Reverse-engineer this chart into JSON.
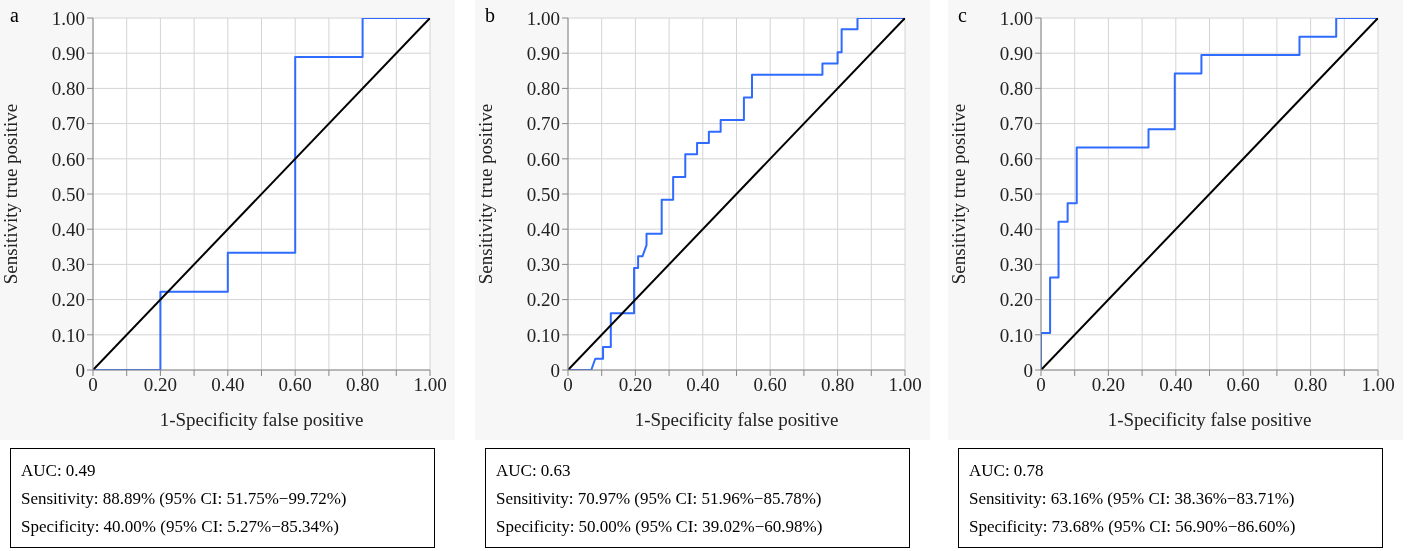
{
  "chart_data": [
    {
      "type": "line",
      "title": "a",
      "xlabel": "1-Specificity false positive",
      "ylabel": "Sensitivity true positive",
      "xlim": [
        0,
        1
      ],
      "ylim": [
        0,
        1
      ],
      "xticks": [
        {
          "value": 0,
          "label": "0"
        },
        {
          "value": 0.1,
          "label": null
        },
        {
          "value": 0.2,
          "label": "0.20"
        },
        {
          "value": 0.3,
          "label": null
        },
        {
          "value": 0.4,
          "label": "0.40"
        },
        {
          "value": 0.5,
          "label": null
        },
        {
          "value": 0.6,
          "label": "0.60"
        },
        {
          "value": 0.7,
          "label": null
        },
        {
          "value": 0.8,
          "label": "0.80"
        },
        {
          "value": 0.9,
          "label": null
        },
        {
          "value": 1,
          "label": "1.00"
        }
      ],
      "yticks": [
        {
          "value": 0,
          "label": "0"
        },
        {
          "value": 0.1,
          "label": "0.10"
        },
        {
          "value": 0.2,
          "label": "0.20"
        },
        {
          "value": 0.3,
          "label": "0.30"
        },
        {
          "value": 0.4,
          "label": "0.40"
        },
        {
          "value": 0.5,
          "label": "0.50"
        },
        {
          "value": 0.6,
          "label": "0.60"
        },
        {
          "value": 0.7,
          "label": "0.70"
        },
        {
          "value": 0.8,
          "label": "0.80"
        },
        {
          "value": 0.9,
          "label": "0.90"
        },
        {
          "value": 1,
          "label": "1.00"
        }
      ],
      "grid": true,
      "series": [
        {
          "color": "#2f6bff",
          "x": [
            0,
            0.2,
            0.2,
            0.4,
            0.4,
            0.6,
            0.6,
            0.8,
            0.8,
            1
          ],
          "values": [
            0,
            0,
            0.222,
            0.222,
            0.333,
            0.333,
            0.889,
            0.889,
            1,
            1
          ]
        },
        {
          "color": "#000000",
          "x": [
            0,
            1
          ],
          "values": [
            0,
            1
          ]
        }
      ],
      "annotations": [
        "AUC: 0.49",
        "Sensitivity: 88.89% (95% CI: 51.75%−99.72%)",
        "Specificity: 40.00% (95% CI: 5.27%−85.34%)"
      ]
    },
    {
      "type": "line",
      "title": "b",
      "xlabel": "1-Specificity false positive",
      "ylabel": "Sensitivity true positive",
      "xlim": [
        0,
        1
      ],
      "ylim": [
        0,
        1
      ],
      "xticks": [
        {
          "value": 0,
          "label": "0"
        },
        {
          "value": 0.1,
          "label": null
        },
        {
          "value": 0.2,
          "label": "0.20"
        },
        {
          "value": 0.3,
          "label": null
        },
        {
          "value": 0.4,
          "label": "0.40"
        },
        {
          "value": 0.5,
          "label": null
        },
        {
          "value": 0.6,
          "label": "0.60"
        },
        {
          "value": 0.7,
          "label": null
        },
        {
          "value": 0.8,
          "label": "0.80"
        },
        {
          "value": 0.9,
          "label": null
        },
        {
          "value": 1,
          "label": "1.00"
        }
      ],
      "yticks": [
        {
          "value": 0,
          "label": "0"
        },
        {
          "value": 0.1,
          "label": "0.10"
        },
        {
          "value": 0.2,
          "label": "0.20"
        },
        {
          "value": 0.3,
          "label": "0.30"
        },
        {
          "value": 0.4,
          "label": "0.40"
        },
        {
          "value": 0.5,
          "label": "0.50"
        },
        {
          "value": 0.6,
          "label": "0.60"
        },
        {
          "value": 0.7,
          "label": "0.70"
        },
        {
          "value": 0.8,
          "label": "0.80"
        },
        {
          "value": 0.9,
          "label": "0.90"
        },
        {
          "value": 1,
          "label": "1.00"
        }
      ],
      "grid": true,
      "series": [
        {
          "color": "#2f6bff",
          "x": [
            0,
            0.069,
            0.081,
            0.104,
            0.104,
            0.127,
            0.127,
            0.196,
            0.196,
            0.208,
            0.208,
            0.221,
            0.233,
            0.233,
            0.278,
            0.278,
            0.312,
            0.312,
            0.348,
            0.348,
            0.383,
            0.383,
            0.418,
            0.418,
            0.453,
            0.453,
            0.522,
            0.522,
            0.546,
            0.546,
            0.755,
            0.755,
            0.8,
            0.8,
            0.812,
            0.812,
            0.859,
            0.859,
            1
          ],
          "values": [
            0,
            0,
            0.032,
            0.032,
            0.065,
            0.065,
            0.161,
            0.161,
            0.29,
            0.29,
            0.323,
            0.323,
            0.355,
            0.387,
            0.387,
            0.484,
            0.484,
            0.548,
            0.548,
            0.613,
            0.613,
            0.645,
            0.645,
            0.677,
            0.677,
            0.71,
            0.71,
            0.774,
            0.774,
            0.839,
            0.839,
            0.871,
            0.871,
            0.903,
            0.903,
            0.968,
            0.968,
            1,
            1
          ]
        },
        {
          "color": "#000000",
          "x": [
            0,
            1
          ],
          "values": [
            0,
            1
          ]
        }
      ],
      "annotations": [
        "AUC: 0.63",
        "Sensitivity: 70.97% (95% CI: 51.96%−85.78%)",
        "Specificity: 50.00% (95% CI: 39.02%−60.98%)"
      ]
    },
    {
      "type": "line",
      "title": "c",
      "xlabel": "1-Specificity false positive",
      "ylabel": "Sensitivity true positive",
      "xlim": [
        0,
        1
      ],
      "ylim": [
        0,
        1
      ],
      "xticks": [
        {
          "value": 0,
          "label": "0"
        },
        {
          "value": 0.1,
          "label": null
        },
        {
          "value": 0.2,
          "label": "0.20"
        },
        {
          "value": 0.3,
          "label": null
        },
        {
          "value": 0.4,
          "label": "0.40"
        },
        {
          "value": 0.5,
          "label": null
        },
        {
          "value": 0.6,
          "label": "0.60"
        },
        {
          "value": 0.7,
          "label": null
        },
        {
          "value": 0.8,
          "label": "0.80"
        },
        {
          "value": 0.9,
          "label": null
        },
        {
          "value": 1,
          "label": "1.00"
        }
      ],
      "yticks": [
        {
          "value": 0,
          "label": "0"
        },
        {
          "value": 0.1,
          "label": "0.10"
        },
        {
          "value": 0.2,
          "label": "0.20"
        },
        {
          "value": 0.3,
          "label": "0.30"
        },
        {
          "value": 0.4,
          "label": "0.40"
        },
        {
          "value": 0.5,
          "label": "0.50"
        },
        {
          "value": 0.6,
          "label": "0.60"
        },
        {
          "value": 0.7,
          "label": "0.70"
        },
        {
          "value": 0.8,
          "label": "0.80"
        },
        {
          "value": 0.9,
          "label": "0.90"
        },
        {
          "value": 1,
          "label": "1.00"
        }
      ],
      "grid": true,
      "series": [
        {
          "color": "#2f6bff",
          "x": [
            0,
            0,
            0.027,
            0.027,
            0.052,
            0.052,
            0.079,
            0.079,
            0.106,
            0.106,
            0.319,
            0.319,
            0.397,
            0.397,
            0.476,
            0.476,
            0.767,
            0.767,
            0.876,
            0.876,
            1
          ],
          "values": [
            0,
            0.105,
            0.105,
            0.263,
            0.263,
            0.421,
            0.421,
            0.474,
            0.474,
            0.632,
            0.632,
            0.684,
            0.684,
            0.842,
            0.842,
            0.895,
            0.895,
            0.947,
            0.947,
            1,
            1
          ]
        },
        {
          "color": "#000000",
          "x": [
            0,
            1
          ],
          "values": [
            0,
            1
          ]
        }
      ],
      "annotations": [
        "AUC: 0.78",
        "Sensitivity: 63.16% (95% CI: 38.36%−83.71%)",
        "Specificity: 73.68% (95% CI: 56.90%−86.60%)"
      ]
    }
  ]
}
